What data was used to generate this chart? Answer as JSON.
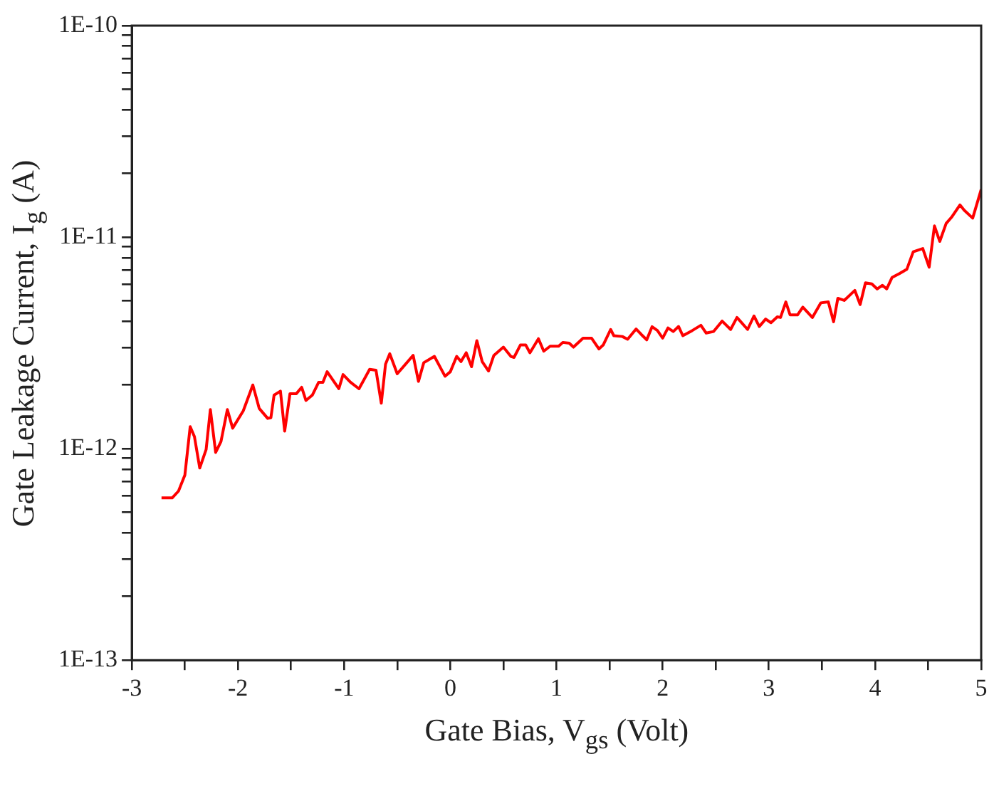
{
  "chart_data": {
    "type": "line",
    "xlabel": "Gate Bias, V$_{gs}$ (Volt)",
    "ylabel": "Gate Leakage Current, I$_{g}$ (A)",
    "log": "y",
    "grid": false,
    "legend": false,
    "marker": "none",
    "line_style": "solid",
    "xlim": [
      -3,
      5
    ],
    "ylim": [
      1e-13,
      1e-10
    ],
    "xticks": [
      -3,
      {
        "value": -2.5,
        "label": null
      },
      -2,
      {
        "value": -1.5,
        "label": null
      },
      -1,
      {
        "value": -0.5,
        "label": null
      },
      0,
      {
        "value": 0.5,
        "label": null
      },
      1,
      {
        "value": 1.5,
        "label": null
      },
      2,
      {
        "value": 2.5,
        "label": null
      },
      3,
      {
        "value": 3.5,
        "label": null
      },
      4,
      {
        "value": 4.5,
        "label": null
      },
      5
    ],
    "yticks": [
      {
        "value": 1e-13,
        "label": "1E-13"
      },
      {
        "value": 2e-13,
        "label": null
      },
      {
        "value": 3e-13,
        "label": null
      },
      {
        "value": 4e-13,
        "label": null
      },
      {
        "value": 5e-13,
        "label": null
      },
      {
        "value": 6e-13,
        "label": null
      },
      {
        "value": 7e-13,
        "label": null
      },
      {
        "value": 8e-13,
        "label": null
      },
      {
        "value": 9e-13,
        "label": null
      },
      {
        "value": 1e-12,
        "label": "1E-12"
      },
      {
        "value": 2e-12,
        "label": null
      },
      {
        "value": 3e-12,
        "label": null
      },
      {
        "value": 4e-12,
        "label": null
      },
      {
        "value": 5e-12,
        "label": null
      },
      {
        "value": 6e-12,
        "label": null
      },
      {
        "value": 7e-12,
        "label": null
      },
      {
        "value": 8e-12,
        "label": null
      },
      {
        "value": 9e-12,
        "label": null
      },
      {
        "value": 1e-11,
        "label": "1E-11"
      },
      {
        "value": 2e-11,
        "label": null
      },
      {
        "value": 3e-11,
        "label": null
      },
      {
        "value": 4e-11,
        "label": null
      },
      {
        "value": 5e-11,
        "label": null
      },
      {
        "value": 6e-11,
        "label": null
      },
      {
        "value": 7e-11,
        "label": null
      },
      {
        "value": 8e-11,
        "label": null
      },
      {
        "value": 9e-11,
        "label": null
      },
      {
        "value": 1e-10,
        "label": "1E-10"
      }
    ],
    "x": [
      -2.72,
      -2.62,
      -2.56,
      -2.5,
      -2.45,
      -2.41,
      -2.36,
      -2.3,
      -2.26,
      -2.21,
      -2.16,
      -2.1,
      -2.05,
      -1.95,
      -1.86,
      -1.8,
      -1.72,
      -1.69,
      -1.66,
      -1.6,
      -1.56,
      -1.51,
      -1.45,
      -1.4,
      -1.36,
      -1.3,
      -1.24,
      -1.2,
      -1.16,
      -1.05,
      -1.01,
      -0.94,
      -0.86,
      -0.76,
      -0.7,
      -0.65,
      -0.61,
      -0.57,
      -0.5,
      -0.35,
      -0.3,
      -0.25,
      -0.15,
      -0.05,
      0,
      0.06,
      0.1,
      0.15,
      0.2,
      0.25,
      0.3,
      0.36,
      0.41,
      0.5,
      0.57,
      0.6,
      0.66,
      0.71,
      0.75,
      0.83,
      0.88,
      0.94,
      1.02,
      1.06,
      1.12,
      1.16,
      1.25,
      1.33,
      1.4,
      1.44,
      1.51,
      1.54,
      1.62,
      1.67,
      1.75,
      1.8,
      1.85,
      1.9,
      1.95,
      2,
      2.05,
      2.1,
      2.15,
      2.19,
      2.28,
      2.36,
      2.41,
      2.48,
      2.56,
      2.64,
      2.7,
      2.8,
      2.86,
      2.91,
      2.97,
      3.02,
      3.08,
      3.11,
      3.16,
      3.2,
      3.27,
      3.32,
      3.41,
      3.49,
      3.56,
      3.61,
      3.65,
      3.71,
      3.81,
      3.86,
      3.91,
      3.97,
      4.02,
      4.07,
      4.11,
      4.16,
      4.23,
      4.3,
      4.36,
      4.45,
      4.51,
      4.56,
      4.61,
      4.67,
      4.72,
      4.8,
      4.84,
      4.92,
      5
    ],
    "series": [
      {
        "color": "#ff0000",
        "values": [
          5.85e-13,
          5.85e-13,
          6.3e-13,
          7.5e-13,
          1.27e-12,
          1.14e-12,
          8.1e-13,
          9.9e-13,
          1.53e-12,
          9.6e-13,
          1.08e-12,
          1.53e-12,
          1.25e-12,
          1.51e-12,
          2e-12,
          1.55e-12,
          1.39e-12,
          1.4e-12,
          1.79e-12,
          1.87e-12,
          1.21e-12,
          1.82e-12,
          1.82e-12,
          1.95e-12,
          1.69e-12,
          1.79e-12,
          2.06e-12,
          2.06e-12,
          2.31e-12,
          1.92e-12,
          2.24e-12,
          2.06e-12,
          1.92e-12,
          2.37e-12,
          2.35e-12,
          1.64e-12,
          2.51e-12,
          2.81e-12,
          2.26e-12,
          2.76e-12,
          2.08e-12,
          2.55e-12,
          2.73e-12,
          2.2e-12,
          2.31e-12,
          2.73e-12,
          2.58e-12,
          2.84e-12,
          2.44e-12,
          3.24e-12,
          2.58e-12,
          2.33e-12,
          2.76e-12,
          3.02e-12,
          2.73e-12,
          2.7e-12,
          3.09e-12,
          3.09e-12,
          2.84e-12,
          3.31e-12,
          2.89e-12,
          3.05e-12,
          3.05e-12,
          3.18e-12,
          3.15e-12,
          3.02e-12,
          3.33e-12,
          3.33e-12,
          2.96e-12,
          3.09e-12,
          3.66e-12,
          3.42e-12,
          3.39e-12,
          3.29e-12,
          3.68e-12,
          3.46e-12,
          3.27e-12,
          3.77e-12,
          3.62e-12,
          3.33e-12,
          3.72e-12,
          3.58e-12,
          3.78e-12,
          3.42e-12,
          3.62e-12,
          3.83e-12,
          3.52e-12,
          3.58e-12,
          4.01e-12,
          3.66e-12,
          4.17e-12,
          3.66e-12,
          4.24e-12,
          3.78e-12,
          4.1e-12,
          3.94e-12,
          4.2e-12,
          4.17e-12,
          4.94e-12,
          4.29e-12,
          4.29e-12,
          4.67e-12,
          4.17e-12,
          4.89e-12,
          4.94e-12,
          3.98e-12,
          5.14e-12,
          5.02e-12,
          5.6e-12,
          4.8e-12,
          6.08e-12,
          6.01e-12,
          5.69e-12,
          5.92e-12,
          5.69e-12,
          6.44e-12,
          6.73e-12,
          7.05e-12,
          8.53e-12,
          8.83e-12,
          7.21e-12,
          1.13e-11,
          9.55e-12,
          1.16e-11,
          1.24e-11,
          1.42e-11,
          1.34e-11,
          1.23e-11,
          1.68e-11
        ]
      }
    ]
  }
}
